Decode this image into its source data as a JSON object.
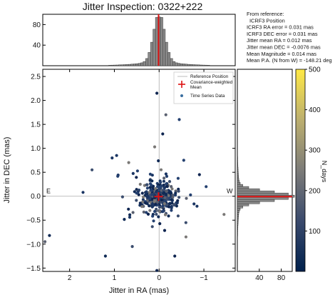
{
  "chart_data": {
    "type": "scatter",
    "title": "Jitter Inspection: 0322+222",
    "xlabel": "Jitter in RA (mas)",
    "ylabel": "Jitter in DEC (mas)",
    "xlim": [
      2.6,
      -1.7
    ],
    "ylim": [
      -1.57,
      2.65
    ],
    "x_ticks": [
      2,
      1,
      0,
      -1
    ],
    "y_ticks": [
      2.5,
      2.0,
      1.5,
      1.0,
      0.5,
      0.0,
      -0.5,
      -1.0,
      -1.5
    ],
    "direction_labels": {
      "east": "E",
      "west": "W"
    },
    "legend": {
      "position": "top-right",
      "entries": [
        {
          "label": "Reference Position"
        },
        {
          "label": "Covariance-weighted Mean"
        },
        {
          "label": "Time Series Data"
        }
      ]
    },
    "stats_text": [
      "From reference:",
      "ICRF3 Position",
      "ICRF3 RA error = 0.031 mas",
      "ICRF3 DEC error = 0.031 mas",
      "Jitter mean RA = 0.012 mas",
      "Jitter mean DEC = -0.0076 mas",
      "Mean Magnitude = 0.014 mas",
      "Mean P.A. (N from W) = -148.21 deg"
    ],
    "mean": {
      "ra": 0.012,
      "dec": -0.0076
    },
    "colorbar": {
      "label": "N_days",
      "range": [
        0,
        500
      ],
      "ticks": [
        100,
        200,
        300,
        400,
        500
      ]
    },
    "top_histogram": {
      "y_ticks": [
        40,
        80
      ],
      "ylim": [
        0,
        100
      ]
    },
    "right_histogram": {
      "x_ticks": [
        40,
        80
      ],
      "xlim": [
        0,
        100
      ]
    },
    "outliers": [
      [
        0.05,
        2.15
      ],
      [
        -0.08,
        1.3
      ],
      [
        -0.15,
        1.7
      ],
      [
        -0.45,
        1.6
      ],
      [
        -0.55,
        0.75
      ],
      [
        0.1,
        1.03
      ],
      [
        1.5,
        0.55
      ],
      [
        1.7,
        0.08
      ],
      [
        2.45,
        -0.82
      ],
      [
        2.55,
        -0.95
      ],
      [
        1.2,
        -1.25
      ],
      [
        0.05,
        -1.55
      ],
      [
        -0.35,
        -1.25
      ],
      [
        -1.45,
        -0.38
      ],
      [
        -1.05,
        0.2
      ],
      [
        0.95,
        0.85
      ],
      [
        -0.9,
        0.45
      ],
      [
        0.6,
        -1.05
      ],
      [
        -0.6,
        -0.85
      ],
      [
        1.05,
        0.8
      ]
    ]
  }
}
